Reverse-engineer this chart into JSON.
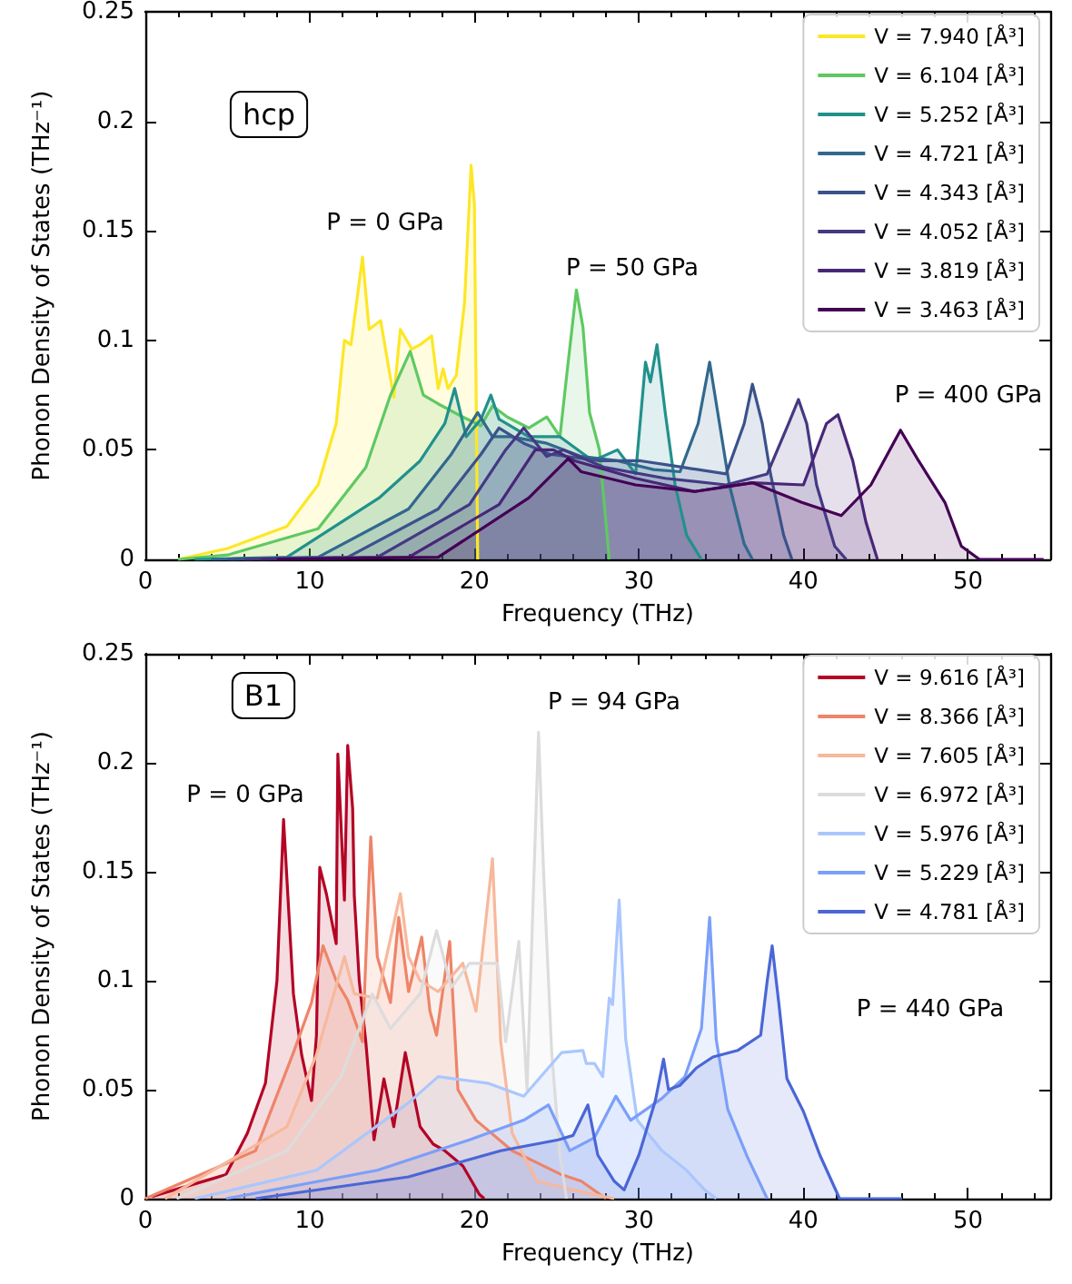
{
  "chart_data": [
    {
      "type": "area",
      "xlabel": "Frequency (THz)",
      "ylabel": "Phonon Density of States (THz⁻¹)",
      "xlim": [
        0,
        55
      ],
      "xticks": [
        0,
        10,
        20,
        30,
        40,
        50
      ],
      "ylim": [
        0,
        0.25
      ],
      "yticks": [
        0,
        0.05,
        0.1,
        0.15,
        0.2,
        0.25
      ],
      "grid": false,
      "legend": "top right",
      "marker": "none",
      "annotations": [
        "hcp",
        "P = 0 GPa",
        "P = 50 GPa",
        "P = 400 GPa"
      ],
      "series": [
        {
          "name": "V = 7.940 [Å³]",
          "color": "#fde725",
          "x": [
            2,
            5,
            8.6,
            10.5,
            11.6,
            12.1,
            12.5,
            13.2,
            13.6,
            14.3,
            15.1,
            15.5,
            16.2,
            16.7,
            17.4,
            17.8,
            18.1,
            18.4,
            18.9,
            19.4,
            19.8,
            20,
            20.2
          ],
          "values": [
            0,
            0.005,
            0.015,
            0.034,
            0.062,
            0.1,
            0.098,
            0.138,
            0.105,
            0.109,
            0.074,
            0.105,
            0.096,
            0.098,
            0.102,
            0.078,
            0.087,
            0.078,
            0.084,
            0.117,
            0.18,
            0.162,
            0
          ]
        },
        {
          "name": "V = 6.104 [Å³]",
          "color": "#5ec962",
          "x": [
            2,
            5,
            10.5,
            13.4,
            14.9,
            16.1,
            16.9,
            17.8,
            19.3,
            20.4,
            21.1,
            22,
            23.3,
            24.4,
            25.2,
            25.7,
            26.2,
            26.6,
            27,
            27.6,
            28.2
          ],
          "values": [
            0,
            0.002,
            0.014,
            0.042,
            0.075,
            0.095,
            0.075,
            0.071,
            0.065,
            0.061,
            0.07,
            0.065,
            0.06,
            0.065,
            0.056,
            0.09,
            0.123,
            0.106,
            0.067,
            0.05,
            0
          ]
        },
        {
          "name": "V = 5.252 [Å³]",
          "color": "#21918c",
          "x": [
            3,
            8.6,
            14.2,
            16.7,
            18.2,
            18.8,
            19.5,
            20.4,
            21,
            21.5,
            23.3,
            25.2,
            27.2,
            28.7,
            29.8,
            30.4,
            30.7,
            31.1,
            31.6,
            32.2,
            32.9,
            33.8
          ],
          "values": [
            0,
            0.001,
            0.028,
            0.045,
            0.062,
            0.078,
            0.056,
            0.064,
            0.075,
            0.064,
            0.056,
            0.056,
            0.045,
            0.05,
            0.039,
            0.09,
            0.081,
            0.098,
            0.067,
            0.034,
            0.011,
            0
          ]
        },
        {
          "name": "V = 4.721 [Å³]",
          "color": "#31688e",
          "x": [
            4,
            10.5,
            16,
            18.6,
            20.2,
            21.1,
            22.2,
            24.4,
            26.5,
            28.7,
            30.9,
            32.5,
            33.6,
            34.3,
            34.9,
            35.5,
            36.4,
            36.9
          ],
          "values": [
            0,
            0.001,
            0.023,
            0.048,
            0.067,
            0.056,
            0.056,
            0.053,
            0.047,
            0.045,
            0.041,
            0.04,
            0.062,
            0.09,
            0.062,
            0.034,
            0.007,
            0
          ]
        },
        {
          "name": "V = 4.343 [Å³]",
          "color": "#3b528b",
          "x": [
            5,
            12.3,
            17.8,
            20.4,
            21.5,
            23,
            24.6,
            27.6,
            30.1,
            32.7,
            35.3,
            36.4,
            36.9,
            37.5,
            38,
            38.8,
            39.3
          ],
          "values": [
            0,
            0.001,
            0.023,
            0.048,
            0.06,
            0.053,
            0.048,
            0.045,
            0.045,
            0.042,
            0.039,
            0.062,
            0.08,
            0.062,
            0.039,
            0.011,
            0
          ]
        },
        {
          "name": "V = 4.052 [Å³]",
          "color": "#443983",
          "x": [
            6,
            14.1,
            19.7,
            21.9,
            23,
            24.4,
            25.4,
            27.9,
            31.6,
            35.3,
            37.8,
            39.1,
            39.7,
            40.2,
            40.8,
            41.9,
            42.6
          ],
          "values": [
            0,
            0.001,
            0.025,
            0.05,
            0.06,
            0.047,
            0.05,
            0.042,
            0.037,
            0.034,
            0.039,
            0.062,
            0.073,
            0.062,
            0.034,
            0.006,
            0
          ]
        },
        {
          "name": "V = 3.819 [Å³]",
          "color": "#482677",
          "x": [
            7,
            16,
            21.5,
            23.7,
            24.8,
            26.1,
            29.8,
            33.4,
            36.9,
            40,
            41.4,
            42.1,
            43,
            43.8,
            44.5
          ],
          "values": [
            0,
            0.001,
            0.025,
            0.05,
            0.05,
            0.045,
            0.037,
            0.031,
            0.035,
            0.034,
            0.062,
            0.066,
            0.045,
            0.017,
            0
          ]
        },
        {
          "name": "V = 3.463 [Å³]",
          "color": "#440154",
          "x": [
            8,
            17.8,
            23.3,
            25.7,
            26.5,
            29.8,
            33.4,
            36.9,
            39.9,
            42.3,
            44.1,
            45.9,
            47,
            48.6,
            49.6,
            50.7,
            54.6
          ],
          "values": [
            0,
            0.001,
            0.028,
            0.046,
            0.04,
            0.034,
            0.031,
            0.035,
            0.026,
            0.02,
            0.034,
            0.059,
            0.045,
            0.026,
            0.006,
            0,
            0
          ]
        }
      ]
    },
    {
      "type": "area",
      "xlabel": "Frequency (THz)",
      "ylabel": "Phonon Density of States (THz⁻¹)",
      "xlim": [
        0,
        55
      ],
      "xticks": [
        0,
        10,
        20,
        30,
        40,
        50
      ],
      "ylim": [
        0,
        0.25
      ],
      "yticks": [
        0,
        0.05,
        0.1,
        0.15,
        0.2,
        0.25
      ],
      "grid": false,
      "legend": "top right",
      "marker": "none",
      "annotations": [
        "B1",
        "P = 0 GPa",
        "P = 94 GPa",
        "P = 440 GPa"
      ],
      "series": [
        {
          "name": "V = 9.616 [Å³]",
          "color": "#b40426",
          "x": [
            0.4,
            4.9,
            6.2,
            7.3,
            8,
            8.4,
            9,
            9.5,
            10.1,
            10.4,
            10.6,
            11,
            11.6,
            11.7,
            12.1,
            12.3,
            12.6,
            12.7,
            13,
            13.4,
            13.9,
            14.5,
            15.1,
            15.8,
            16.7,
            17.5,
            18.2,
            19.3,
            20.3,
            20.6
          ],
          "values": [
            0.001,
            0.011,
            0.03,
            0.053,
            0.1,
            0.174,
            0.094,
            0.066,
            0.045,
            0.075,
            0.152,
            0.14,
            0.117,
            0.204,
            0.137,
            0.208,
            0.179,
            0.139,
            0.1,
            0.072,
            0.027,
            0.055,
            0.033,
            0.067,
            0.033,
            0.025,
            0.022,
            0.015,
            0.002,
            0
          ]
        },
        {
          "name": "V = 8.366 [Å³]",
          "color": "#ee8468",
          "x": [
            0,
            6.7,
            9,
            10.1,
            10.8,
            11.6,
            12.3,
            13.2,
            13.7,
            14.1,
            14.9,
            15.4,
            16,
            16.8,
            17.3,
            17.7,
            18.5,
            19,
            20.1,
            22.3,
            25.3,
            26.5,
            28
          ],
          "values": [
            0,
            0.022,
            0.067,
            0.09,
            0.116,
            0.1,
            0.091,
            0.072,
            0.166,
            0.111,
            0.09,
            0.129,
            0.095,
            0.12,
            0.086,
            0.075,
            0.118,
            0.05,
            0.036,
            0.022,
            0.011,
            0.008,
            0
          ]
        },
        {
          "name": "V = 7.605 [Å³]",
          "color": "#f7b89c",
          "x": [
            1.2,
            8.6,
            10.4,
            12.1,
            12.7,
            14.1,
            15.5,
            16,
            16.7,
            17.8,
            19.3,
            20.1,
            21.1,
            21.6,
            22.3,
            23.8,
            26,
            28.5
          ],
          "values": [
            0,
            0.033,
            0.066,
            0.111,
            0.094,
            0.092,
            0.14,
            0.111,
            0.1,
            0.095,
            0.108,
            0.086,
            0.156,
            0.072,
            0.03,
            0.008,
            0.004,
            0
          ]
        },
        {
          "name": "V = 6.972 [Å³]",
          "color": "#dddcdc",
          "x": [
            1.9,
            8.6,
            11.9,
            13.8,
            14.9,
            16.7,
            17.7,
            18.6,
            19.7,
            21.4,
            21.9,
            22.7,
            23.2,
            23.9,
            24.2,
            24.7,
            25.2,
            25.6
          ],
          "values": [
            0,
            0.022,
            0.056,
            0.094,
            0.078,
            0.094,
            0.123,
            0.097,
            0.108,
            0.108,
            0.072,
            0.118,
            0.05,
            0.214,
            0.151,
            0.067,
            0.02,
            0
          ]
        },
        {
          "name": "V = 5.976 [Å³]",
          "color": "#aac7fd",
          "x": [
            3,
            10.4,
            16,
            17.8,
            20.8,
            23,
            25.3,
            26.6,
            26.8,
            27.3,
            27.8,
            28.2,
            28.4,
            28.8,
            29.2,
            29.9,
            31.4,
            32.9,
            34,
            34.7
          ],
          "values": [
            0,
            0.013,
            0.044,
            0.056,
            0.053,
            0.047,
            0.067,
            0.068,
            0.062,
            0.062,
            0.056,
            0.092,
            0.089,
            0.137,
            0.073,
            0.036,
            0.022,
            0.013,
            0.004,
            0
          ]
        },
        {
          "name": "V = 5.229 [Å³]",
          "color": "#7b9ff9",
          "x": [
            4.9,
            14.1,
            19.7,
            23,
            24.5,
            25.8,
            27.3,
            28.6,
            29.5,
            31.4,
            32.8,
            33.8,
            34.3,
            34.7,
            35.4,
            36.6,
            37.8
          ],
          "values": [
            0,
            0.013,
            0.027,
            0.036,
            0.043,
            0.022,
            0.028,
            0.047,
            0.036,
            0.046,
            0.056,
            0.078,
            0.129,
            0.073,
            0.041,
            0.019,
            0
          ]
        },
        {
          "name": "V = 4.781 [Å³]",
          "color": "#4a66d6",
          "x": [
            6.7,
            16,
            21.6,
            25.1,
            26,
            26.9,
            27.5,
            28.5,
            29.1,
            30,
            31,
            31.5,
            31.8,
            32.5,
            33.5,
            34.5,
            36,
            37.4,
            37.8,
            38.1,
            38.5,
            39,
            40,
            41,
            42.2,
            46
          ],
          "values": [
            0,
            0.01,
            0.022,
            0.027,
            0.029,
            0.043,
            0.02,
            0.008,
            0.004,
            0.02,
            0.045,
            0.064,
            0.05,
            0.052,
            0.06,
            0.065,
            0.068,
            0.075,
            0.1,
            0.116,
            0.09,
            0.055,
            0.04,
            0.02,
            0,
            0
          ]
        }
      ]
    }
  ]
}
